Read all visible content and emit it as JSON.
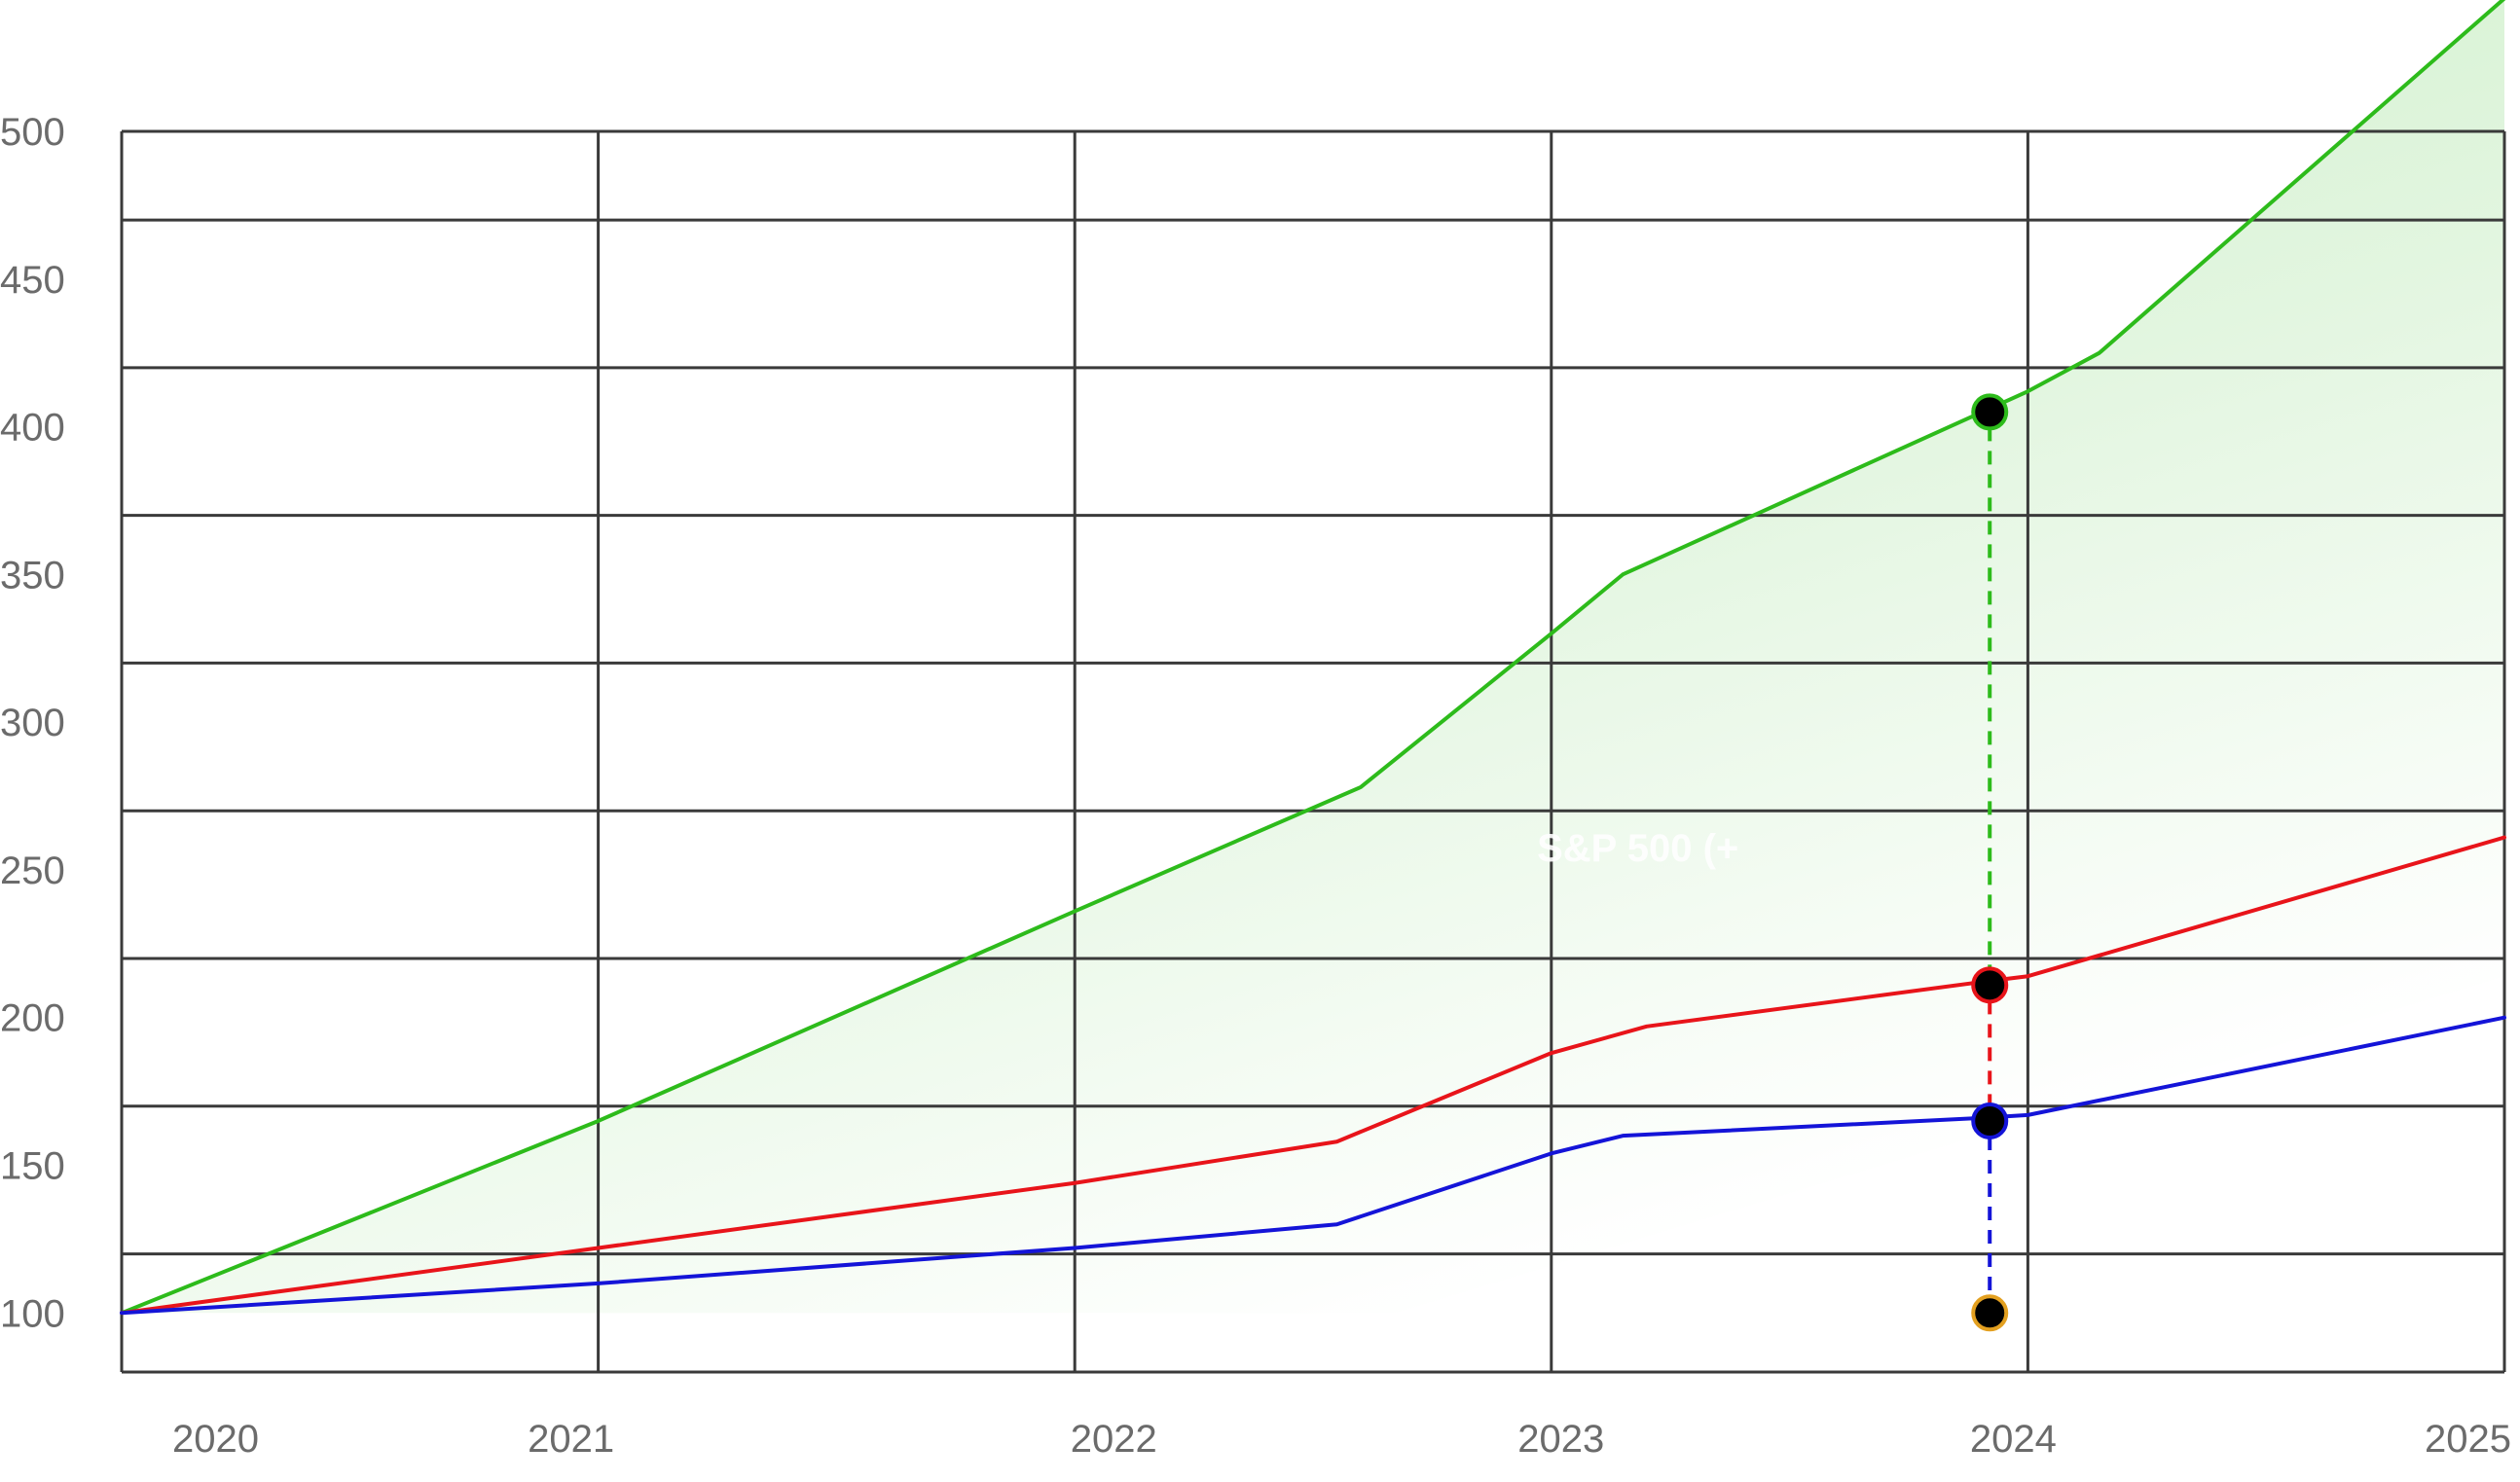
{
  "chart_data": {
    "type": "line",
    "x_ticks": [
      "2020",
      "2021",
      "2022",
      "2023",
      "2024",
      "2025"
    ],
    "y_ticks": [
      "100",
      "150",
      "200",
      "250",
      "300",
      "350",
      "400",
      "450",
      "500"
    ],
    "xlim": [
      2020,
      2025
    ],
    "ylim": [
      80,
      500
    ],
    "grid": true,
    "series": [
      {
        "color": "#2dbb1b",
        "fill": "#2dbb1b",
        "values": [
          [
            2020.0,
            100
          ],
          [
            2021.0,
            165
          ],
          [
            2022.0,
            236
          ],
          [
            2022.6,
            278
          ],
          [
            2023.0,
            330
          ],
          [
            2023.15,
            350
          ],
          [
            2024.0,
            412
          ],
          [
            2024.15,
            425
          ],
          [
            2025.0,
            545
          ]
        ]
      },
      {
        "color": "#e8141a",
        "values": [
          [
            2020.0,
            100
          ],
          [
            2021.0,
            122
          ],
          [
            2022.0,
            144
          ],
          [
            2022.55,
            158
          ],
          [
            2023.0,
            188
          ],
          [
            2023.2,
            197
          ],
          [
            2023.9,
            212
          ],
          [
            2024.0,
            214
          ],
          [
            2025.0,
            261
          ]
        ]
      },
      {
        "color": "#1414d8",
        "values": [
          [
            2020.0,
            100
          ],
          [
            2021.0,
            110
          ],
          [
            2022.0,
            122
          ],
          [
            2022.55,
            130
          ],
          [
            2023.0,
            154
          ],
          [
            2023.15,
            160
          ],
          [
            2023.9,
            166
          ],
          [
            2024.0,
            167
          ],
          [
            2025.0,
            200
          ]
        ]
      }
    ],
    "crosshair": {
      "x": 2023.92,
      "markers": [
        {
          "y": 405,
          "color": "#2dbb1b"
        },
        {
          "y": 211,
          "color": "#e8141a"
        },
        {
          "y": 165,
          "color": "#1414d8"
        },
        {
          "y": 100,
          "color": "#e3a020"
        }
      ]
    },
    "annotations": [
      {
        "text": "S&P 500 (+",
        "x": 2022.97,
        "y": 253
      }
    ]
  }
}
